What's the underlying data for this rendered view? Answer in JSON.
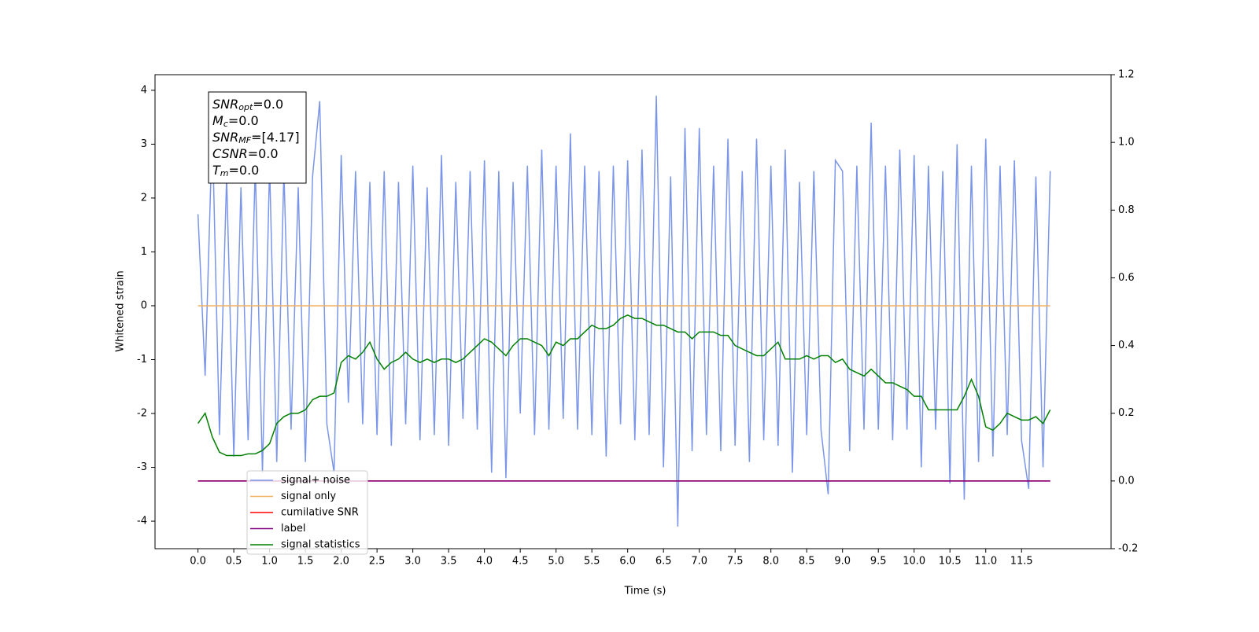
{
  "chart_data": {
    "type": "line",
    "xlabel": "Time (s)",
    "ylabel": "Whitened strain",
    "x": [
      0.0,
      0.1,
      0.2,
      0.3,
      0.4,
      0.5,
      0.6,
      0.7,
      0.8,
      0.9,
      1.0,
      1.1,
      1.2,
      1.3,
      1.4,
      1.5,
      1.6,
      1.7,
      1.8,
      1.9,
      2.0,
      2.1,
      2.2,
      2.3,
      2.4,
      2.5,
      2.6,
      2.7,
      2.8,
      2.9,
      3.0,
      3.1,
      3.2,
      3.3,
      3.4,
      3.5,
      3.6,
      3.7,
      3.8,
      3.9,
      4.0,
      4.1,
      4.2,
      4.3,
      4.4,
      4.5,
      4.6,
      4.7,
      4.8,
      4.9,
      5.0,
      5.1,
      5.2,
      5.3,
      5.4,
      5.5,
      5.6,
      5.7,
      5.8,
      5.9,
      6.0,
      6.1,
      6.2,
      6.3,
      6.4,
      6.5,
      6.6,
      6.7,
      6.8,
      6.9,
      7.0,
      7.1,
      7.2,
      7.3,
      7.4,
      7.5,
      7.6,
      7.7,
      7.8,
      7.9,
      8.0,
      8.1,
      8.2,
      8.3,
      8.4,
      8.5,
      8.6,
      8.7,
      8.8,
      8.9,
      9.0,
      9.1,
      9.2,
      9.3,
      9.4,
      9.5,
      9.6,
      9.7,
      9.8,
      9.9,
      10.0,
      10.1,
      10.2,
      10.3,
      10.4,
      10.5,
      10.6,
      10.7,
      10.8,
      10.9,
      11.0,
      11.1,
      11.2,
      11.3,
      11.4,
      11.5,
      11.6,
      11.7,
      11.8,
      11.9
    ],
    "xlim": [
      -0.6,
      12.75
    ],
    "xticks": [
      {
        "value": 0,
        "label": "0.0"
      },
      0.5,
      {
        "value": 1,
        "label": "1.0"
      },
      1.5,
      {
        "value": 2,
        "label": "2.0"
      },
      2.5,
      {
        "value": 3,
        "label": "3.0"
      },
      3.5,
      {
        "value": 4,
        "label": "4.0"
      },
      4.5,
      {
        "value": 5,
        "label": "5.0"
      },
      5.5,
      {
        "value": 6,
        "label": "6.0"
      },
      6.5,
      {
        "value": 7,
        "label": "7.0"
      },
      7.5,
      {
        "value": 8,
        "label": "8.0"
      },
      8.5,
      {
        "value": 9,
        "label": "9.0"
      },
      9.5,
      {
        "value": 10,
        "label": "10.0"
      },
      10.5,
      {
        "value": 11,
        "label": "11.0"
      },
      11.5
    ],
    "ylim": [
      -4.51,
      4.29
    ],
    "yticks": [
      -4,
      -3,
      -2,
      -1,
      0,
      1,
      2,
      3,
      4
    ],
    "y2lim": [
      -0.2,
      1.2
    ],
    "y2ticks": [
      -0.2,
      {
        "value": 0,
        "label": "0.0"
      },
      0.2,
      0.4,
      0.6,
      0.8,
      {
        "value": 1,
        "label": "1.0"
      },
      1.2
    ],
    "legend": "lower left",
    "series": [
      {
        "name": "signal+ noise",
        "color": "#7b96e8",
        "values": [
          1.7,
          -1.3,
          3.3,
          -2.4,
          2.4,
          -2.8,
          2.2,
          -2.5,
          2.6,
          -3.1,
          2.6,
          -2.9,
          2.5,
          -2.3,
          2.2,
          -2.9,
          2.4,
          3.8,
          -2.2,
          -3.1,
          2.8,
          -1.8,
          2.5,
          -2.2,
          2.3,
          -2.4,
          2.5,
          -2.6,
          2.3,
          -2.2,
          2.6,
          -2.5,
          2.2,
          -2.4,
          2.8,
          -2.6,
          2.3,
          -2.1,
          2.5,
          -2.3,
          2.7,
          -3.1,
          2.5,
          -3.2,
          2.3,
          -2.0,
          2.6,
          -2.4,
          2.9,
          -2.3,
          2.6,
          -2.1,
          3.2,
          -2.3,
          2.6,
          -2.4,
          2.5,
          -2.8,
          2.6,
          -2.2,
          2.7,
          -2.5,
          2.9,
          -2.4,
          3.9,
          -3.0,
          2.4,
          -4.1,
          3.3,
          -2.7,
          3.3,
          -2.4,
          2.6,
          -2.7,
          3.1,
          -2.6,
          2.5,
          -2.9,
          3.1,
          -2.5,
          2.6,
          -2.6,
          2.9,
          -3.1,
          2.3,
          -2.4,
          2.5,
          -2.3,
          -3.5,
          2.7,
          2.5,
          -2.7,
          2.6,
          -2.3,
          3.4,
          -2.3,
          2.6,
          -2.5,
          2.9,
          -2.3,
          2.8,
          -3.0,
          2.6,
          -2.3,
          2.5,
          -3.3,
          3.0,
          -3.6,
          2.6,
          -2.9,
          3.1,
          -2.8,
          2.6,
          -2.4,
          2.7,
          -2.5,
          -3.4,
          2.4,
          -3.0,
          2.5
        ]
      },
      {
        "name": "signal only",
        "color": "#f0b060",
        "values": [
          0,
          0,
          0,
          0,
          0,
          0,
          0,
          0,
          0,
          0,
          0,
          0,
          0,
          0,
          0,
          0,
          0,
          0,
          0,
          0,
          0,
          0,
          0,
          0,
          0,
          0,
          0,
          0,
          0,
          0,
          0,
          0,
          0,
          0,
          0,
          0,
          0,
          0,
          0,
          0,
          0,
          0,
          0,
          0,
          0,
          0,
          0,
          0,
          0,
          0,
          0,
          0,
          0,
          0,
          0,
          0,
          0,
          0,
          0,
          0,
          0,
          0,
          0,
          0,
          0,
          0,
          0,
          0,
          0,
          0,
          0,
          0,
          0,
          0,
          0,
          0,
          0,
          0,
          0,
          0,
          0,
          0,
          0,
          0,
          0,
          0,
          0,
          0,
          0,
          0,
          0,
          0,
          0,
          0,
          0,
          0,
          0,
          0,
          0,
          0,
          0,
          0,
          0,
          0,
          0,
          0,
          0,
          0,
          0,
          0,
          0,
          0,
          0,
          0,
          0,
          0,
          0,
          0,
          0,
          0
        ]
      },
      {
        "name": "cumilative SNR",
        "color": "#ff0000",
        "axis": "y2",
        "values": [
          0,
          0,
          0,
          0,
          0,
          0,
          0,
          0,
          0,
          0,
          0,
          0,
          0,
          0,
          0,
          0,
          0,
          0,
          0,
          0,
          0,
          0,
          0,
          0,
          0,
          0,
          0,
          0,
          0,
          0,
          0,
          0,
          0,
          0,
          0,
          0,
          0,
          0,
          0,
          0,
          0,
          0,
          0,
          0,
          0,
          0,
          0,
          0,
          0,
          0,
          0,
          0,
          0,
          0,
          0,
          0,
          0,
          0,
          0,
          0,
          0,
          0,
          0,
          0,
          0,
          0,
          0,
          0,
          0,
          0,
          0,
          0,
          0,
          0,
          0,
          0,
          0,
          0,
          0,
          0,
          0,
          0,
          0,
          0,
          0,
          0,
          0,
          0,
          0,
          0,
          0,
          0,
          0,
          0,
          0,
          0,
          0,
          0,
          0,
          0,
          0,
          0,
          0,
          0,
          0,
          0,
          0,
          0,
          0,
          0,
          0,
          0,
          0,
          0,
          0,
          0,
          0,
          0,
          0,
          0
        ]
      },
      {
        "name": "label",
        "color": "#800080",
        "axis": "y2",
        "values": [
          0,
          0,
          0,
          0,
          0,
          0,
          0,
          0,
          0,
          0,
          0,
          0,
          0,
          0,
          0,
          0,
          0,
          0,
          0,
          0,
          0,
          0,
          0,
          0,
          0,
          0,
          0,
          0,
          0,
          0,
          0,
          0,
          0,
          0,
          0,
          0,
          0,
          0,
          0,
          0,
          0,
          0,
          0,
          0,
          0,
          0,
          0,
          0,
          0,
          0,
          0,
          0,
          0,
          0,
          0,
          0,
          0,
          0,
          0,
          0,
          0,
          0,
          0,
          0,
          0,
          0,
          0,
          0,
          0,
          0,
          0,
          0,
          0,
          0,
          0,
          0,
          0,
          0,
          0,
          0,
          0,
          0,
          0,
          0,
          0,
          0,
          0,
          0,
          0,
          0,
          0,
          0,
          0,
          0,
          0,
          0,
          0,
          0,
          0,
          0,
          0,
          0,
          0,
          0,
          0,
          0,
          0,
          0,
          0,
          0,
          0,
          0,
          0,
          0,
          0,
          0,
          0,
          0,
          0,
          0
        ]
      },
      {
        "name": "signal statistics",
        "color": "#008000",
        "axis": "y2",
        "values": [
          0.17,
          0.2,
          0.13,
          0.085,
          0.075,
          0.075,
          0.075,
          0.08,
          0.08,
          0.09,
          0.11,
          0.17,
          0.19,
          0.2,
          0.2,
          0.21,
          0.24,
          0.25,
          0.25,
          0.26,
          0.35,
          0.37,
          0.36,
          0.38,
          0.41,
          0.36,
          0.33,
          0.35,
          0.36,
          0.38,
          0.36,
          0.35,
          0.36,
          0.35,
          0.36,
          0.36,
          0.35,
          0.36,
          0.38,
          0.4,
          0.42,
          0.41,
          0.39,
          0.37,
          0.4,
          0.42,
          0.42,
          0.41,
          0.4,
          0.37,
          0.41,
          0.4,
          0.42,
          0.42,
          0.44,
          0.46,
          0.45,
          0.45,
          0.46,
          0.48,
          0.49,
          0.48,
          0.48,
          0.47,
          0.46,
          0.46,
          0.45,
          0.44,
          0.44,
          0.42,
          0.44,
          0.44,
          0.44,
          0.43,
          0.43,
          0.4,
          0.39,
          0.38,
          0.37,
          0.37,
          0.39,
          0.41,
          0.36,
          0.36,
          0.36,
          0.37,
          0.36,
          0.37,
          0.37,
          0.35,
          0.36,
          0.33,
          0.32,
          0.31,
          0.33,
          0.31,
          0.29,
          0.29,
          0.28,
          0.27,
          0.25,
          0.25,
          0.21,
          0.21,
          0.21,
          0.21,
          0.21,
          0.25,
          0.3,
          0.25,
          0.16,
          0.15,
          0.17,
          0.2,
          0.19,
          0.18,
          0.18,
          0.19,
          0.17,
          0.21
        ]
      }
    ],
    "annotations": [
      {
        "text": "SNR",
        "sub": "opt",
        "suffix": "=0.0"
      },
      {
        "text": "M",
        "sub": "c",
        "suffix": "=0.0"
      },
      {
        "text": "SNR",
        "sub": "MF",
        "suffix": "=[4.17]"
      },
      {
        "text": "CSNR",
        "suffix": "=0.0"
      },
      {
        "text": "T",
        "sub": "m",
        "suffix": "=0.0"
      }
    ]
  }
}
